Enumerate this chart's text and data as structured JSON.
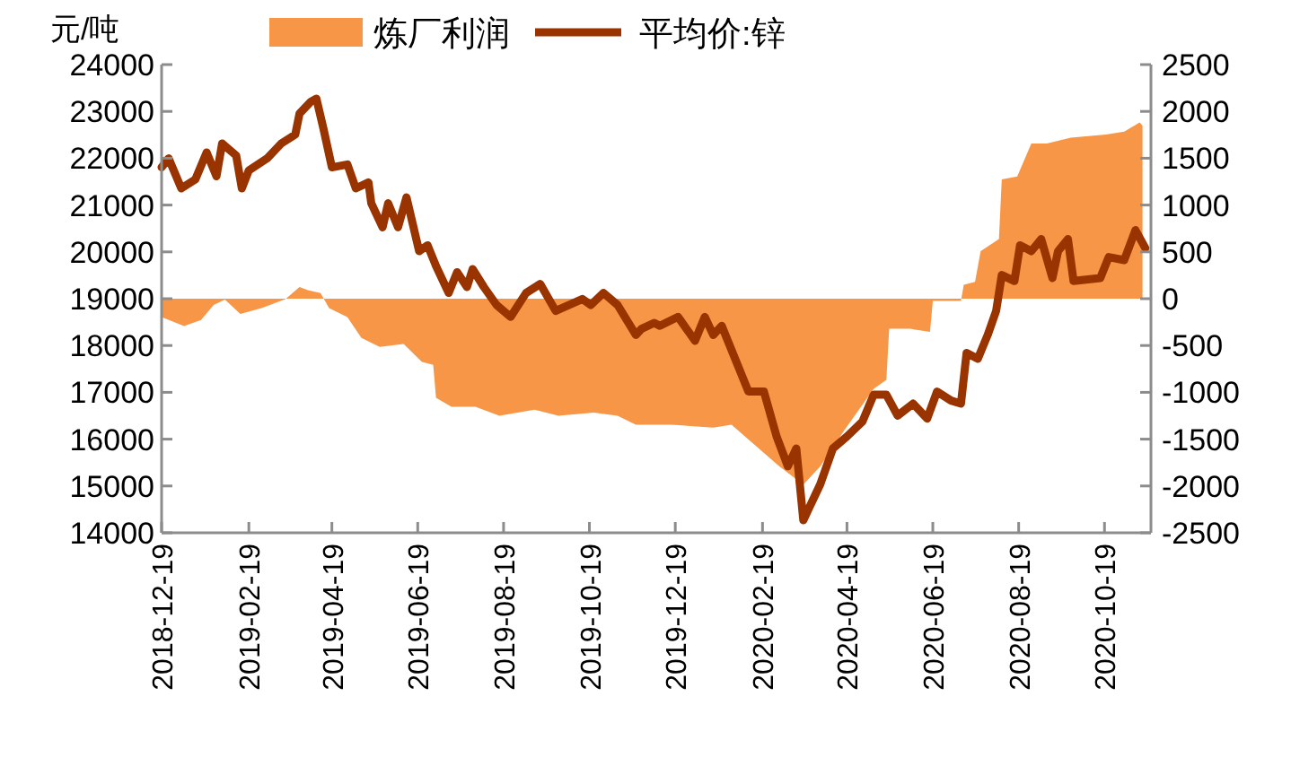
{
  "chart_data": {
    "type": "area",
    "ylabel": "元/吨",
    "legend": "top",
    "xlim": [
      "2018-12-19",
      "2020-11-21"
    ],
    "xticks": [
      "2018-12-19",
      "2019-02-19",
      "2019-04-19",
      "2019-06-19",
      "2019-08-19",
      "2019-10-19",
      "2019-12-19",
      "2020-02-19",
      "2020-04-19",
      "2020-06-19",
      "2020-08-19",
      "2020-10-19"
    ],
    "ylim": [
      14000,
      24000
    ],
    "yticks": [
      14000,
      15000,
      16000,
      17000,
      18000,
      19000,
      20000,
      21000,
      22000,
      23000,
      24000
    ],
    "y2lim": [
      -2500,
      2500
    ],
    "y2ticks": [
      -2500,
      -2000,
      -1500,
      -1000,
      -500,
      0,
      500,
      1000,
      1500,
      2000,
      2500
    ],
    "series": [
      {
        "name": "炼厂利润",
        "axis": "y2",
        "color": "#f79646",
        "x": [
          "2018-12-19",
          "2019-01-04",
          "2019-01-16",
          "2019-01-25",
          "2019-02-02",
          "2019-02-13",
          "2019-02-28",
          "2019-03-17",
          "2019-03-27",
          "2019-04-02",
          "2019-04-11",
          "2019-04-17",
          "2019-04-30",
          "2019-05-10",
          "2019-05-23",
          "2019-06-09",
          "2019-06-22",
          "2019-06-30",
          "2019-07-02",
          "2019-07-13",
          "2019-07-30",
          "2019-08-16",
          "2019-09-10",
          "2019-09-27",
          "2019-10-22",
          "2019-11-08",
          "2019-11-21",
          "2019-12-16",
          "2020-01-15",
          "2020-01-28",
          "2020-02-14",
          "2020-03-02",
          "2020-03-19",
          "2020-03-31",
          "2020-04-17",
          "2020-05-08",
          "2020-05-17",
          "2020-05-19",
          "2020-06-03",
          "2020-06-17",
          "2020-06-19",
          "2020-07-09",
          "2020-07-11",
          "2020-07-19",
          "2020-07-23",
          "2020-08-05",
          "2020-08-07",
          "2020-08-18",
          "2020-08-28",
          "2020-09-08",
          "2020-09-25",
          "2020-10-20",
          "2020-11-02",
          "2020-11-13",
          "2020-11-15"
        ],
        "values": [
          -196,
          -292,
          -227,
          -67,
          -10,
          -163,
          -100,
          -4,
          124,
          91,
          60,
          -100,
          -196,
          -418,
          -514,
          -483,
          -675,
          -706,
          -1058,
          -1154,
          -1154,
          -1250,
          -1185,
          -1250,
          -1217,
          -1250,
          -1346,
          -1346,
          -1376,
          -1346,
          -1568,
          -1792,
          -1984,
          -1792,
          -1409,
          -962,
          -866,
          -322,
          -322,
          -355,
          -25,
          -25,
          148,
          180,
          507,
          636,
          1274,
          1306,
          1657,
          1657,
          1720,
          1753,
          1785,
          1881,
          1849
        ]
      },
      {
        "name": "平均价:锌",
        "type": "line",
        "axis": "y",
        "color": "#993300",
        "x": [
          "2018-12-19",
          "2018-12-24",
          "2019-01-02",
          "2019-01-12",
          "2019-01-20",
          "2019-01-27",
          "2019-01-31",
          "2019-02-10",
          "2019-02-14",
          "2019-02-19",
          "2019-03-04",
          "2019-03-14",
          "2019-03-24",
          "2019-03-27",
          "2019-04-04",
          "2019-04-08",
          "2019-04-13",
          "2019-04-19",
          "2019-04-30",
          "2019-05-06",
          "2019-05-15",
          "2019-05-17",
          "2019-05-25",
          "2019-05-29",
          "2019-06-05",
          "2019-06-11",
          "2019-06-20",
          "2019-06-26",
          "2019-07-02",
          "2019-07-11",
          "2019-07-17",
          "2019-07-24",
          "2019-07-28",
          "2019-08-05",
          "2019-08-14",
          "2019-08-24",
          "2019-09-04",
          "2019-09-14",
          "2019-09-25",
          "2019-10-14",
          "2019-10-20",
          "2019-10-29",
          "2019-11-08",
          "2019-11-21",
          "2019-11-25",
          "2019-12-04",
          "2019-12-08",
          "2019-12-21",
          "2020-01-02",
          "2020-01-09",
          "2020-01-15",
          "2020-01-21",
          "2020-02-09",
          "2020-02-20",
          "2020-02-29",
          "2020-03-08",
          "2020-03-14",
          "2020-03-19",
          "2020-03-23",
          "2020-03-31",
          "2020-04-09",
          "2020-04-19",
          "2020-04-30",
          "2020-05-08",
          "2020-05-17",
          "2020-05-25",
          "2020-06-05",
          "2020-06-15",
          "2020-06-22",
          "2020-07-02",
          "2020-07-09",
          "2020-07-13",
          "2020-07-21",
          "2020-07-28",
          "2020-08-03",
          "2020-08-07",
          "2020-08-16",
          "2020-08-20",
          "2020-08-28",
          "2020-09-04",
          "2020-09-12",
          "2020-09-16",
          "2020-09-23",
          "2020-09-27",
          "2020-10-16",
          "2020-10-22",
          "2020-11-02",
          "2020-11-10",
          "2020-11-17"
        ],
        "values": [
          21805,
          21996,
          21356,
          21548,
          22123,
          21613,
          22314,
          22058,
          21356,
          21740,
          21996,
          22314,
          22506,
          22954,
          23207,
          23272,
          22633,
          21805,
          21867,
          21356,
          21483,
          21038,
          20525,
          21038,
          20525,
          21165,
          20015,
          20142,
          19697,
          19123,
          19567,
          19249,
          19632,
          19249,
          18866,
          18611,
          19123,
          19314,
          18739,
          18994,
          18866,
          19123,
          18866,
          18226,
          18356,
          18483,
          18420,
          18611,
          18100,
          18611,
          18226,
          18420,
          17015,
          17015,
          16057,
          15421,
          15800,
          14268,
          14525,
          15034,
          15800,
          16057,
          16375,
          16950,
          16950,
          16502,
          16759,
          16440,
          17015,
          16823,
          16759,
          17843,
          17717,
          18226,
          18739,
          19506,
          19377,
          20142,
          20015,
          20272,
          19441,
          20015,
          20272,
          19377,
          19441,
          19889,
          19824,
          20464,
          20080
        ]
      }
    ]
  }
}
